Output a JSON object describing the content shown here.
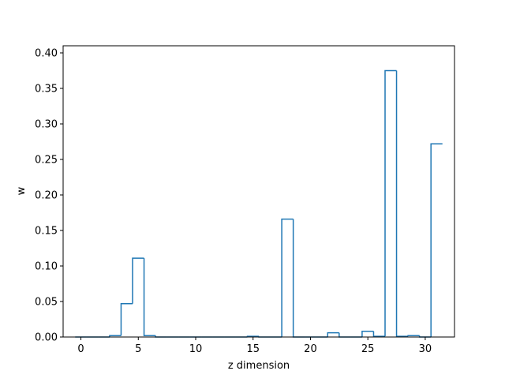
{
  "chart_data": {
    "type": "bar",
    "style": "step",
    "xlabel": "z dimension",
    "ylabel": "w",
    "xlim": [
      -1.55,
      32.55
    ],
    "ylim": [
      0,
      0.41
    ],
    "x_ticks": [
      0,
      5,
      10,
      15,
      20,
      25,
      30
    ],
    "y_ticks": [
      0.0,
      0.05,
      0.1,
      0.15,
      0.2,
      0.25,
      0.3,
      0.35,
      0.4
    ],
    "x_tick_labels": [
      "0",
      "5",
      "10",
      "15",
      "20",
      "25",
      "30"
    ],
    "y_tick_labels": [
      "0.00",
      "0.05",
      "0.10",
      "0.15",
      "0.20",
      "0.25",
      "0.30",
      "0.35",
      "0.40"
    ],
    "categories": [
      0,
      1,
      2,
      3,
      4,
      5,
      6,
      7,
      8,
      9,
      10,
      11,
      12,
      13,
      14,
      15,
      16,
      17,
      18,
      19,
      20,
      21,
      22,
      23,
      24,
      25,
      26,
      27,
      28,
      29,
      30,
      31
    ],
    "values": [
      0.0,
      0.0,
      0.0,
      0.002,
      0.047,
      0.111,
      0.002,
      0.0,
      0.0,
      0.0,
      0.0,
      0.0,
      0.0,
      0.0,
      0.0,
      0.001,
      0.0,
      0.0,
      0.166,
      0.0,
      0.0,
      0.0,
      0.006,
      0.0,
      0.0,
      0.008,
      0.001,
      0.375,
      0.001,
      0.002,
      0.0,
      0.272
    ],
    "grid": false,
    "color": "#1f77b4"
  }
}
